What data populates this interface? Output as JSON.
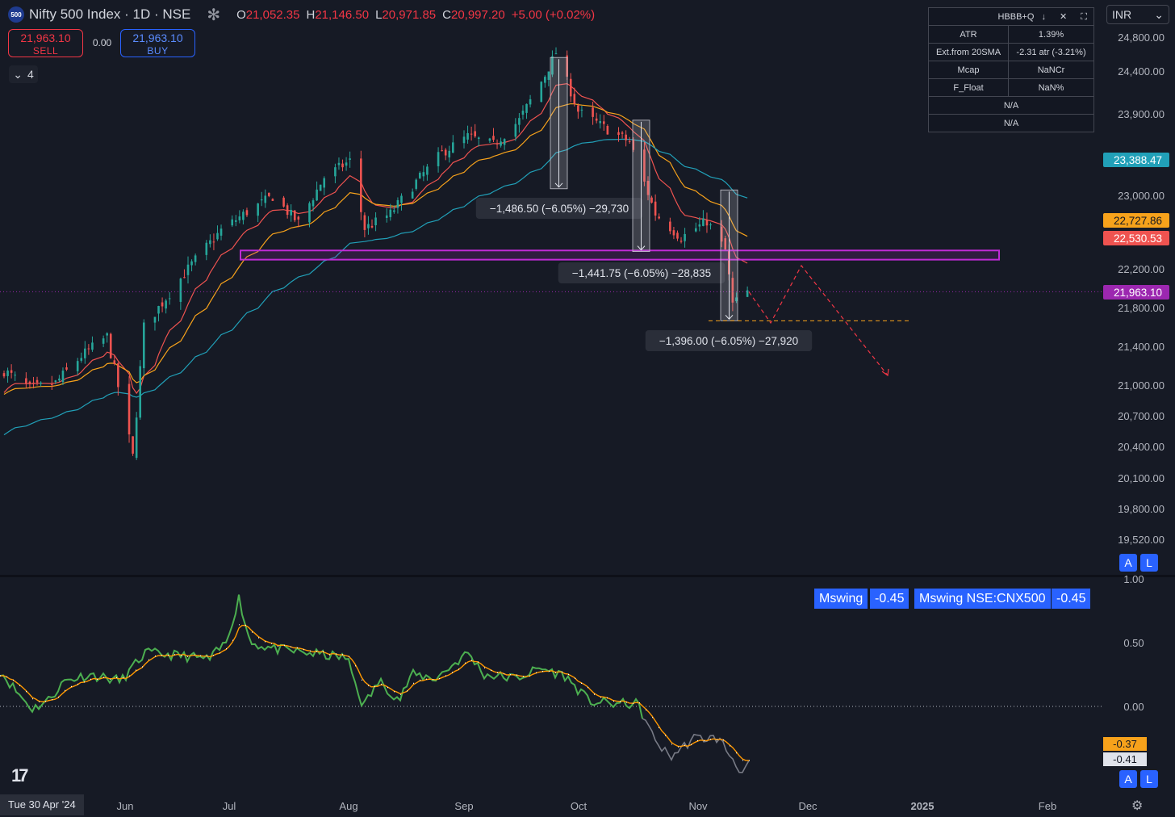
{
  "header": {
    "logo": "500",
    "symbol": "Nifty 500 Index · 1D · NSE",
    "open_label": "O",
    "open": "21,052.35",
    "high_label": "H",
    "high": "21,146.50",
    "low_label": "L",
    "low": "20,971.85",
    "close_label": "C",
    "close": "20,997.20",
    "change": "+5.00 (+0.02%)"
  },
  "trade": {
    "sell_price": "21,963.10",
    "sell_label": "SELL",
    "buy_price": "21,963.10",
    "buy_label": "BUY",
    "spread": "0.00"
  },
  "indicators_collapsed_count": "4",
  "currency": "INR",
  "stats_table": {
    "title": "HBBB+Q",
    "rows": [
      {
        "label": "ATR",
        "value": "1.39%"
      },
      {
        "label": "Ext.from 20SMA",
        "value": "-2.31 atr (-3.21%)"
      },
      {
        "label": "Mcap",
        "value": "NaNCr"
      },
      {
        "label": "F_Float",
        "value": "NaN%"
      },
      {
        "label": "N/A"
      },
      {
        "label": "N/A"
      }
    ]
  },
  "oscillator_legend": {
    "name1": "Mswing",
    "value1": "-0.45",
    "name2": "Mswing NSE:CNX500",
    "value2": "-0.45"
  },
  "auto_log": {
    "a": "A",
    "l": "L"
  },
  "footer": {
    "cursor_date": "Tue 30 Apr '24"
  },
  "colors": {
    "background": "#161a25",
    "up": "#26a69a",
    "down": "#ef5350",
    "ema_fast": "#ef5350",
    "ema_mid": "#f7a21b",
    "ema_slow": "#21a0b8",
    "support_zone": "#c02bd6",
    "oscillator": "#4caf50",
    "oscillator_signal": "#ff9800"
  },
  "icons": [
    "sun-gear-icon",
    "tradingview-logo-icon",
    "settings-icon",
    "download-icon",
    "collapse-icon",
    "fullscreen-icon"
  ],
  "chart_data": [
    {
      "type": "candlestick",
      "title": "Nifty 500 Index · 1D · NSE",
      "x_labels": [
        "Jun",
        "Jul",
        "Aug",
        "Sep",
        "Oct",
        "Nov",
        "Dec",
        "2025",
        "Feb"
      ],
      "y_ticks": [
        24800,
        24400,
        23900,
        23000,
        22200,
        21800,
        21400,
        21000,
        20700,
        20400,
        20100,
        19800,
        19520
      ],
      "y_tick_labels": [
        "24,800.00",
        "24,400.00",
        "23,900.00",
        "23,000.00",
        "22,200.00",
        "21,800.00",
        "21,400.00",
        "21,000.00",
        "20,700.00",
        "20,400.00",
        "20,100.00",
        "19,800.00",
        "19,520.00"
      ],
      "price_labels": [
        {
          "value": "23,388.47",
          "color": "#21a0b8"
        },
        {
          "value": "22,727.86",
          "color": "#f7a21b"
        },
        {
          "value": "22,530.53",
          "color": "#ef5350"
        },
        {
          "value": "21,963.10",
          "color": "#9c27b0"
        }
      ],
      "close_path": [
        [
          "2024-04-30",
          21150
        ],
        [
          "2024-05-07",
          20960
        ],
        [
          "2024-05-14",
          21020
        ],
        [
          "2024-05-21",
          21300
        ],
        [
          "2024-05-28",
          21500
        ],
        [
          "2024-06-04",
          20300
        ],
        [
          "2024-06-07",
          21600
        ],
        [
          "2024-06-14",
          21950
        ],
        [
          "2024-06-21",
          22300
        ],
        [
          "2024-06-28",
          22620
        ],
        [
          "2024-07-05",
          22820
        ],
        [
          "2024-07-12",
          22990
        ],
        [
          "2024-07-19",
          22700
        ],
        [
          "2024-07-26",
          23200
        ],
        [
          "2024-08-02",
          23380
        ],
        [
          "2024-08-06",
          22640
        ],
        [
          "2024-08-13",
          22800
        ],
        [
          "2024-08-20",
          23150
        ],
        [
          "2024-08-27",
          23470
        ],
        [
          "2024-09-03",
          23650
        ],
        [
          "2024-09-10",
          23560
        ],
        [
          "2024-09-17",
          23830
        ],
        [
          "2024-09-24",
          24350
        ],
        [
          "2024-09-27",
          24620
        ],
        [
          "2024-10-03",
          23930
        ],
        [
          "2024-10-10",
          23750
        ],
        [
          "2024-10-17",
          23590
        ],
        [
          "2024-10-24",
          22800
        ],
        [
          "2024-10-31",
          22540
        ],
        [
          "2024-11-07",
          22720
        ],
        [
          "2024-11-12",
          22400
        ],
        [
          "2024-11-14",
          21830
        ],
        [
          "2024-11-18",
          21963
        ]
      ],
      "measurements": [
        {
          "label": "−1,486.50 (−6.05%) −29,730",
          "from": 24560,
          "to": 23073
        },
        {
          "label": "−1,441.75 (−6.05%) −28,835",
          "from": 23830,
          "to": 22388
        },
        {
          "label": "−1,396.00 (−6.05%) −27,920",
          "from": 23060,
          "to": 21664
        }
      ],
      "support_zone": [
        22300,
        22400
      ],
      "projection": [
        [
          21963,
          21720
        ],
        [
          22330,
          21130
        ]
      ]
    },
    {
      "type": "line",
      "title": "Mswing",
      "y_ticks": [
        1.0,
        0.5,
        0.0
      ],
      "y_tick_labels": [
        "1.00",
        "0.50",
        "0.00"
      ],
      "series": [
        {
          "name": "Mswing",
          "last": "-0.41"
        },
        {
          "name": "Mswing NSE:CNX500",
          "last": "-0.37"
        }
      ]
    }
  ]
}
